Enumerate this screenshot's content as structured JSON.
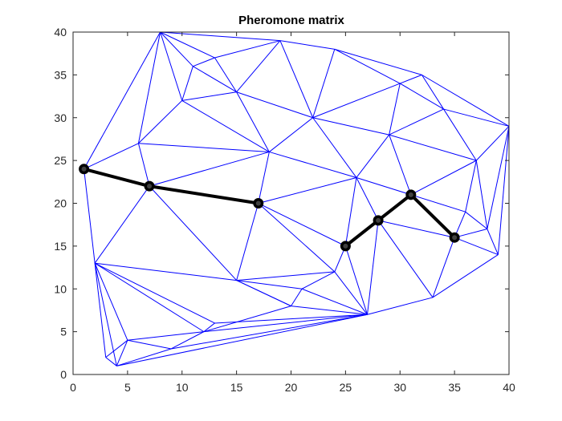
{
  "chart_data": {
    "type": "scatter",
    "title": "Pheromone matrix",
    "xlabel": "",
    "ylabel": "",
    "xlim": [
      0,
      40
    ],
    "ylim": [
      0,
      40
    ],
    "xticks": [
      0,
      5,
      10,
      15,
      20,
      25,
      30,
      35,
      40
    ],
    "yticks": [
      0,
      5,
      10,
      15,
      20,
      25,
      30,
      35,
      40
    ],
    "grid": false,
    "colors": {
      "edges": "#0000ff",
      "path": "#000000",
      "axes": "#262626"
    },
    "nodes": [
      [
        1,
        24
      ],
      [
        7,
        22
      ],
      [
        17,
        20
      ],
      [
        25,
        15
      ],
      [
        28,
        18
      ],
      [
        31,
        21
      ],
      [
        35,
        16
      ],
      [
        8,
        40
      ],
      [
        19,
        39
      ],
      [
        24,
        38
      ],
      [
        13,
        37
      ],
      [
        11,
        36
      ],
      [
        30,
        34
      ],
      [
        32,
        35
      ],
      [
        10,
        32
      ],
      [
        15,
        33
      ],
      [
        22,
        30
      ],
      [
        34,
        31
      ],
      [
        29,
        28
      ],
      [
        40,
        29
      ],
      [
        6,
        27
      ],
      [
        18,
        26
      ],
      [
        26,
        23
      ],
      [
        37,
        25
      ],
      [
        36,
        19
      ],
      [
        38,
        17
      ],
      [
        39,
        14
      ],
      [
        2,
        13
      ],
      [
        15,
        11
      ],
      [
        24,
        12
      ],
      [
        21,
        10
      ],
      [
        33,
        9
      ],
      [
        27,
        7
      ],
      [
        20,
        8
      ],
      [
        12,
        5
      ],
      [
        13,
        6
      ],
      [
        3,
        2
      ],
      [
        5,
        4
      ],
      [
        4,
        1
      ],
      [
        9,
        3
      ]
    ],
    "edges": [
      [
        0,
        7
      ],
      [
        0,
        20
      ],
      [
        0,
        1
      ],
      [
        0,
        27
      ],
      [
        1,
        20
      ],
      [
        1,
        21
      ],
      [
        1,
        2
      ],
      [
        1,
        27
      ],
      [
        1,
        28
      ],
      [
        20,
        7
      ],
      [
        20,
        14
      ],
      [
        20,
        21
      ],
      [
        7,
        14
      ],
      [
        7,
        11
      ],
      [
        7,
        10
      ],
      [
        7,
        8
      ],
      [
        8,
        10
      ],
      [
        8,
        15
      ],
      [
        8,
        9
      ],
      [
        8,
        16
      ],
      [
        10,
        11
      ],
      [
        10,
        15
      ],
      [
        11,
        14
      ],
      [
        11,
        15
      ],
      [
        14,
        15
      ],
      [
        14,
        21
      ],
      [
        15,
        16
      ],
      [
        15,
        21
      ],
      [
        9,
        16
      ],
      [
        9,
        12
      ],
      [
        9,
        13
      ],
      [
        13,
        12
      ],
      [
        13,
        17
      ],
      [
        13,
        19
      ],
      [
        12,
        16
      ],
      [
        12,
        17
      ],
      [
        12,
        18
      ],
      [
        16,
        18
      ],
      [
        16,
        21
      ],
      [
        16,
        22
      ],
      [
        17,
        19
      ],
      [
        17,
        18
      ],
      [
        17,
        23
      ],
      [
        18,
        22
      ],
      [
        18,
        23
      ],
      [
        18,
        5
      ],
      [
        19,
        23
      ],
      [
        19,
        25
      ],
      [
        19,
        26
      ],
      [
        21,
        2
      ],
      [
        21,
        22
      ],
      [
        2,
        22
      ],
      [
        2,
        3
      ],
      [
        2,
        28
      ],
      [
        2,
        29
      ],
      [
        22,
        3
      ],
      [
        22,
        4
      ],
      [
        22,
        5
      ],
      [
        23,
        5
      ],
      [
        23,
        24
      ],
      [
        23,
        25
      ],
      [
        24,
        5
      ],
      [
        24,
        6
      ],
      [
        24,
        25
      ],
      [
        25,
        6
      ],
      [
        25,
        26
      ],
      [
        26,
        6
      ],
      [
        26,
        31
      ],
      [
        6,
        31
      ],
      [
        6,
        4
      ],
      [
        4,
        31
      ],
      [
        4,
        3
      ],
      [
        3,
        29
      ],
      [
        3,
        32
      ],
      [
        4,
        32
      ],
      [
        31,
        32
      ],
      [
        29,
        32
      ],
      [
        29,
        30
      ],
      [
        29,
        28
      ],
      [
        28,
        30
      ],
      [
        28,
        27
      ],
      [
        28,
        33
      ],
      [
        30,
        33
      ],
      [
        30,
        32
      ],
      [
        33,
        32
      ],
      [
        33,
        34
      ],
      [
        33,
        28
      ],
      [
        27,
        34
      ],
      [
        27,
        35
      ],
      [
        27,
        37
      ],
      [
        27,
        36
      ],
      [
        27,
        38
      ],
      [
        34,
        35
      ],
      [
        34,
        39
      ],
      [
        34,
        32
      ],
      [
        35,
        32
      ],
      [
        37,
        34
      ],
      [
        37,
        39
      ],
      [
        37,
        38
      ],
      [
        36,
        37
      ],
      [
        38,
        32
      ],
      [
        38,
        39
      ],
      [
        39,
        32
      ],
      [
        36,
        38
      ]
    ],
    "path": [
      [
        1,
        24
      ],
      [
        7,
        22
      ],
      [
        17,
        20
      ],
      [
        25,
        15
      ],
      [
        28,
        18
      ],
      [
        31,
        21
      ],
      [
        35,
        16
      ]
    ],
    "path_breaks": [
      [
        2,
        3
      ]
    ]
  }
}
